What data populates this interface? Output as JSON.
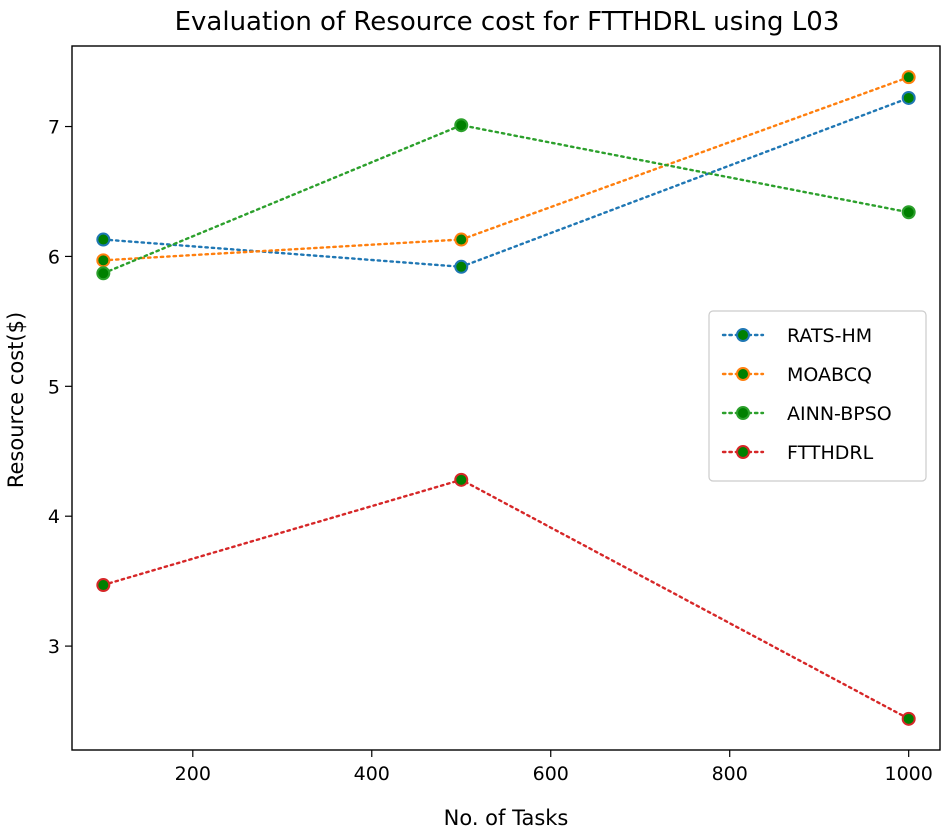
{
  "chart_data": {
    "type": "line",
    "title": "Evaluation of Resource cost for FTTHDRL using L03",
    "xlabel": "No. of Tasks",
    "ylabel": "Resource cost($)",
    "x": [
      100,
      500,
      1000
    ],
    "xlim": [
      65,
      1035
    ],
    "ylim": [
      2.2,
      7.62
    ],
    "xticks": [
      200,
      400,
      600,
      800,
      1000
    ],
    "xtick_labels": [
      "200",
      "400",
      "600",
      "800",
      "1000"
    ],
    "yticks": [
      3,
      4,
      5,
      6,
      7
    ],
    "ytick_labels": [
      "3",
      "4",
      "5",
      "6",
      "7"
    ],
    "grid": false,
    "legend_position": "center-right",
    "series": [
      {
        "name": "RATS-HM",
        "values": [
          6.13,
          5.92,
          7.22
        ],
        "color": "#1f77b4"
      },
      {
        "name": "MOABCQ",
        "values": [
          5.97,
          6.13,
          7.38
        ],
        "color": "#ff7f0e"
      },
      {
        "name": "AINN-BPSO",
        "values": [
          5.87,
          7.01,
          6.34
        ],
        "color": "#2ca02c"
      },
      {
        "name": "FTTHDRL",
        "values": [
          3.47,
          4.28,
          2.44
        ],
        "color": "#d62728"
      }
    ],
    "marker_face_color": "#008000"
  }
}
